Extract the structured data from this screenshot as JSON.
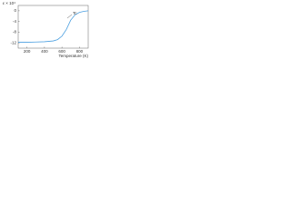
{
  "chart_data": {
    "type": "line",
    "y_label": "ε × 10⁴",
    "x_label": "Temperature (K)",
    "annotation": "Tc",
    "x": [
      100,
      200,
      300,
      400,
      500,
      550,
      600,
      650,
      700,
      750,
      800,
      850,
      900
    ],
    "series": [
      {
        "color": "#4a9fe0",
        "values": [
          -11.8,
          -11.8,
          -11.7,
          -11.6,
          -11.3,
          -10.8,
          -9.5,
          -7,
          -3.5,
          -1.5,
          -0.6,
          -0.2,
          0
        ]
      }
    ],
    "xlim": [
      100,
      900
    ],
    "ylim": [
      -14,
      2
    ],
    "xticks": [
      200,
      400,
      600,
      800
    ],
    "yticks": [
      0,
      -4,
      -8,
      -12
    ],
    "grid": false
  }
}
